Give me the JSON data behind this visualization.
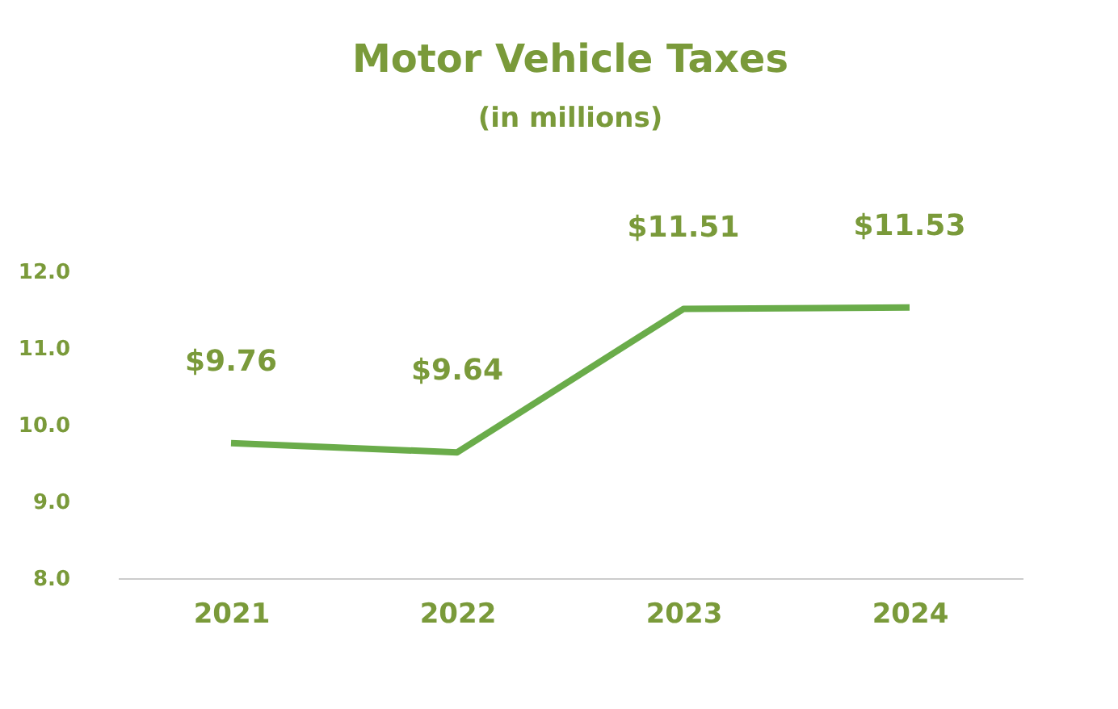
{
  "chart_data": {
    "type": "line",
    "title": "Motor Vehicle Taxes",
    "subtitle": "(in millions)",
    "categories": [
      "2021",
      "2022",
      "2023",
      "2024"
    ],
    "series": [
      {
        "color": "#6aac4a",
        "values": [
          9.76,
          9.64,
          11.51,
          11.53
        ],
        "value_labels": [
          "$9.76",
          "$9.64",
          "$11.51",
          "$11.53"
        ]
      }
    ],
    "ylim": [
      8,
      12
    ],
    "yticks": [
      {
        "value": 8,
        "label": "8.0"
      },
      {
        "value": 9,
        "label": "9.0"
      },
      {
        "value": 10,
        "label": "10.0"
      },
      {
        "value": 11,
        "label": "11.0"
      },
      {
        "value": 12,
        "label": "12.0"
      }
    ],
    "grid": false,
    "marker": "none",
    "line_style": "solid"
  }
}
